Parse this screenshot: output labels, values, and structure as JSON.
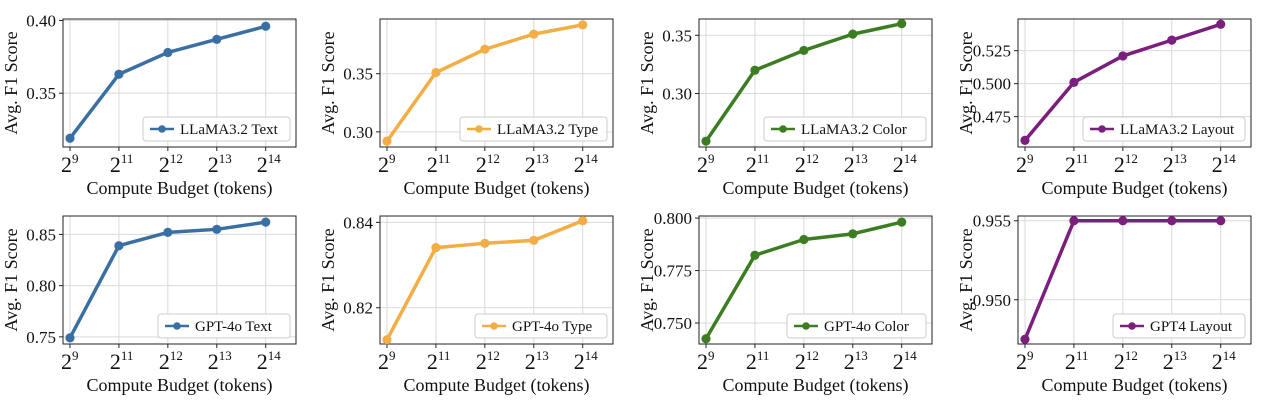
{
  "figure": {
    "xlabel": "Compute Budget (tokens)",
    "ylabel": "Avg. F1 Score"
  },
  "chart_data": [
    {
      "type": "line",
      "color": "#3a6fa3",
      "x_ticks": [
        {
          "base": "2",
          "exp": "9"
        },
        {
          "base": "2",
          "exp": "11"
        },
        {
          "base": "2",
          "exp": "12"
        },
        {
          "base": "2",
          "exp": "13"
        },
        {
          "base": "2",
          "exp": "14"
        }
      ],
      "x": [
        9,
        11,
        12,
        13,
        14
      ],
      "xlabel": "Compute Budget (tokens)",
      "ylabel": "Avg. F1 Score",
      "ylim": [
        0.313,
        0.401
      ],
      "yticks": [
        0.35,
        0.4
      ],
      "ytick_labels": [
        "0.35",
        "0.40"
      ],
      "series": [
        {
          "name": "LLaMA3.2 Text",
          "values": [
            0.319,
            0.363,
            0.378,
            0.387,
            0.396
          ]
        }
      ],
      "legend": "bottom-right",
      "grid": true
    },
    {
      "type": "line",
      "color": "#f2ae44",
      "x_ticks": [
        {
          "base": "2",
          "exp": "9"
        },
        {
          "base": "2",
          "exp": "11"
        },
        {
          "base": "2",
          "exp": "12"
        },
        {
          "base": "2",
          "exp": "13"
        },
        {
          "base": "2",
          "exp": "14"
        }
      ],
      "x": [
        9,
        11,
        12,
        13,
        14
      ],
      "xlabel": "Compute Budget (tokens)",
      "ylabel": "Avg. F1 Score",
      "ylim": [
        0.287,
        0.397
      ],
      "yticks": [
        0.3,
        0.35
      ],
      "ytick_labels": [
        "0.30",
        "0.35"
      ],
      "series": [
        {
          "name": "LLaMA3.2 Type",
          "values": [
            0.292,
            0.351,
            0.371,
            0.384,
            0.392
          ]
        }
      ],
      "legend": "bottom-right",
      "grid": true
    },
    {
      "type": "line",
      "color": "#3c7d22",
      "x_ticks": [
        {
          "base": "2",
          "exp": "9"
        },
        {
          "base": "2",
          "exp": "11"
        },
        {
          "base": "2",
          "exp": "12"
        },
        {
          "base": "2",
          "exp": "13"
        },
        {
          "base": "2",
          "exp": "14"
        }
      ],
      "x": [
        9,
        11,
        12,
        13,
        14
      ],
      "xlabel": "Compute Budget (tokens)",
      "ylabel": "Avg. F1 Score",
      "ylim": [
        0.254,
        0.364
      ],
      "yticks": [
        0.3,
        0.35
      ],
      "ytick_labels": [
        "0.30",
        "0.35"
      ],
      "series": [
        {
          "name": "LLaMA3.2  Color",
          "values": [
            0.259,
            0.32,
            0.337,
            0.351,
            0.36
          ]
        }
      ],
      "legend": "bottom-right",
      "grid": true
    },
    {
      "type": "line",
      "color": "#7b1f7f",
      "x_ticks": [
        {
          "base": "2",
          "exp": "9"
        },
        {
          "base": "2",
          "exp": "11"
        },
        {
          "base": "2",
          "exp": "12"
        },
        {
          "base": "2",
          "exp": "13"
        },
        {
          "base": "2",
          "exp": "14"
        }
      ],
      "x": [
        9,
        11,
        12,
        13,
        14
      ],
      "xlabel": "Compute Budget (tokens)",
      "ylabel": "Avg. F1 Score",
      "ylim": [
        0.452,
        0.549
      ],
      "yticks": [
        0.475,
        0.5,
        0.525
      ],
      "ytick_labels": [
        "0.475",
        "0.500",
        "0.525"
      ],
      "series": [
        {
          "name": "LLaMA3.2 Layout",
          "values": [
            0.457,
            0.501,
            0.521,
            0.533,
            0.545
          ]
        }
      ],
      "legend": "bottom-right",
      "grid": true
    },
    {
      "type": "line",
      "color": "#3a6fa3",
      "x_ticks": [
        {
          "base": "2",
          "exp": "9"
        },
        {
          "base": "2",
          "exp": "11"
        },
        {
          "base": "2",
          "exp": "12"
        },
        {
          "base": "2",
          "exp": "13"
        },
        {
          "base": "2",
          "exp": "14"
        }
      ],
      "x": [
        9,
        11,
        12,
        13,
        14
      ],
      "xlabel": "Compute Budget (tokens)",
      "ylabel": "Avg. F1 Score",
      "ylim": [
        0.743,
        0.868
      ],
      "yticks": [
        0.75,
        0.8,
        0.85
      ],
      "ytick_labels": [
        "0.75",
        "0.80",
        "0.85"
      ],
      "series": [
        {
          "name": "GPT-4o Text",
          "values": [
            0.749,
            0.839,
            0.852,
            0.855,
            0.862
          ]
        }
      ],
      "legend": "bottom-right",
      "grid": true
    },
    {
      "type": "line",
      "color": "#f2ae44",
      "x_ticks": [
        {
          "base": "2",
          "exp": "9"
        },
        {
          "base": "2",
          "exp": "11"
        },
        {
          "base": "2",
          "exp": "12"
        },
        {
          "base": "2",
          "exp": "13"
        },
        {
          "base": "2",
          "exp": "14"
        }
      ],
      "x": [
        9,
        11,
        12,
        13,
        14
      ],
      "xlabel": "Compute Budget (tokens)",
      "ylabel": "Avg. F1 Score",
      "ylim": [
        0.8115,
        0.8415
      ],
      "yticks": [
        0.82,
        0.84
      ],
      "ytick_labels": [
        "0.82",
        "0.84"
      ],
      "series": [
        {
          "name": "GPT-4o Type",
          "values": [
            0.8125,
            0.8341,
            0.8351,
            0.8358,
            0.8404
          ]
        }
      ],
      "legend": "bottom-right",
      "grid": true
    },
    {
      "type": "line",
      "color": "#3c7d22",
      "x_ticks": [
        {
          "base": "2",
          "exp": "9"
        },
        {
          "base": "2",
          "exp": "11"
        },
        {
          "base": "2",
          "exp": "12"
        },
        {
          "base": "2",
          "exp": "13"
        },
        {
          "base": "2",
          "exp": "14"
        }
      ],
      "x": [
        9,
        11,
        12,
        13,
        14
      ],
      "xlabel": "Compute Budget (tokens)",
      "ylabel": "Avg. F1 Score",
      "ylim": [
        0.74,
        0.801
      ],
      "yticks": [
        0.75,
        0.775,
        0.8
      ],
      "ytick_labels": [
        "0.750",
        "0.775",
        "0.800"
      ],
      "series": [
        {
          "name": "GPT-4o Color",
          "values": [
            0.7425,
            0.7823,
            0.7898,
            0.7925,
            0.7981
          ]
        }
      ],
      "legend": "bottom-right",
      "grid": true
    },
    {
      "type": "line",
      "color": "#7b1f7f",
      "x_ticks": [
        {
          "base": "2",
          "exp": "9"
        },
        {
          "base": "2",
          "exp": "11"
        },
        {
          "base": "2",
          "exp": "12"
        },
        {
          "base": "2",
          "exp": "13"
        },
        {
          "base": "2",
          "exp": "14"
        }
      ],
      "x": [
        9,
        11,
        12,
        13,
        14
      ],
      "xlabel": "Compute Budget (tokens)",
      "ylabel": "Avg. F1 Score",
      "ylim": [
        0.9472,
        0.9553
      ],
      "yticks": [
        0.95,
        0.955
      ],
      "ytick_labels": [
        "0.950",
        "0.955"
      ],
      "series": [
        {
          "name": "GPT4 Layout",
          "values": [
            0.9475,
            0.955,
            0.955,
            0.955,
            0.955
          ]
        }
      ],
      "legend": "bottom-right",
      "grid": true
    }
  ]
}
